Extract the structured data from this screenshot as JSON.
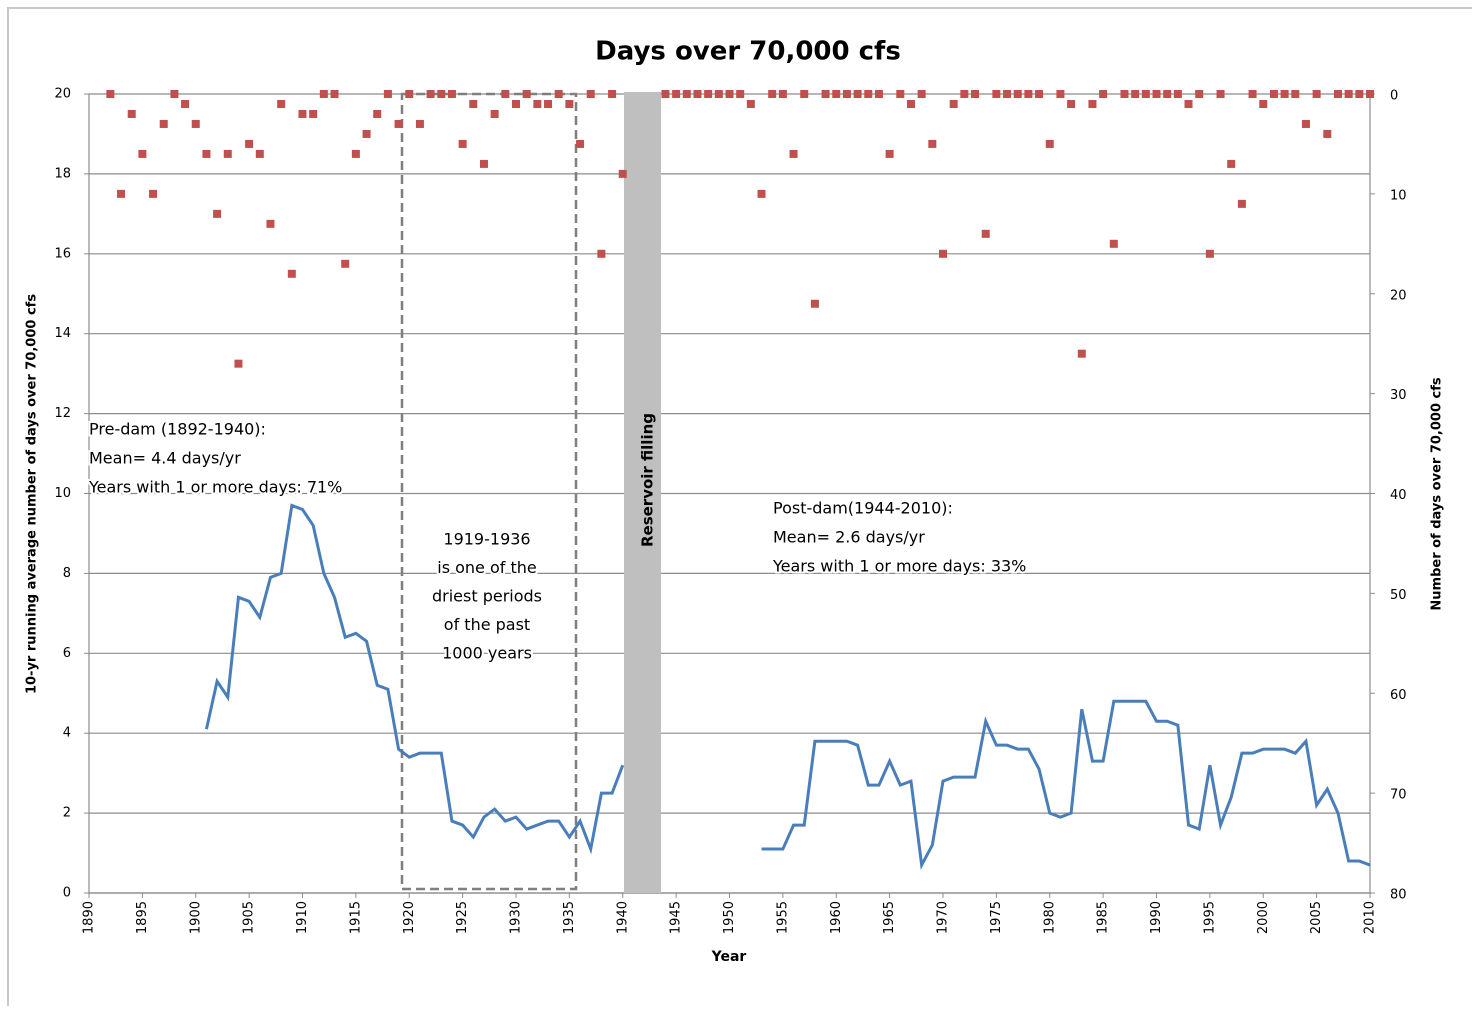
{
  "chart_data": {
    "type": "line",
    "title": "Days over 70,000 cfs",
    "x_label": "Year",
    "y_label": "10-yr running average number of days over 70,000 cfs",
    "y2_label": "Number of days over 70,000 cfs",
    "xlim": [
      1890,
      2010
    ],
    "xticks": [
      1890,
      1895,
      1900,
      1905,
      1910,
      1915,
      1920,
      1925,
      1930,
      1935,
      1940,
      1945,
      1950,
      1955,
      1960,
      1965,
      1970,
      1975,
      1980,
      1985,
      1990,
      1995,
      2000,
      2005,
      2010
    ],
    "ylim": [
      0,
      20
    ],
    "yticks": [
      0,
      2,
      4,
      6,
      8,
      10,
      12,
      14,
      16,
      18,
      20
    ],
    "y2lim": [
      80,
      0
    ],
    "y2ticks": [
      0,
      10,
      20,
      30,
      40,
      50,
      60,
      70,
      80
    ],
    "grid": true,
    "x": [
      1892,
      1893,
      1894,
      1895,
      1896,
      1897,
      1898,
      1899,
      1900,
      1901,
      1902,
      1903,
      1904,
      1905,
      1906,
      1907,
      1908,
      1909,
      1910,
      1911,
      1912,
      1913,
      1914,
      1915,
      1916,
      1917,
      1918,
      1919,
      1920,
      1921,
      1922,
      1923,
      1924,
      1925,
      1926,
      1927,
      1928,
      1929,
      1930,
      1931,
      1932,
      1933,
      1934,
      1935,
      1936,
      1937,
      1938,
      1939,
      1940,
      1941,
      1942,
      1943,
      1944,
      1945,
      1946,
      1947,
      1948,
      1949,
      1950,
      1951,
      1952,
      1953,
      1954,
      1955,
      1956,
      1957,
      1958,
      1959,
      1960,
      1961,
      1962,
      1963,
      1964,
      1965,
      1966,
      1967,
      1968,
      1969,
      1970,
      1971,
      1972,
      1973,
      1974,
      1975,
      1976,
      1977,
      1978,
      1979,
      1980,
      1981,
      1982,
      1983,
      1984,
      1985,
      1986,
      1987,
      1988,
      1989,
      1990,
      1991,
      1992,
      1993,
      1994,
      1995,
      1996,
      1997,
      1998,
      1999,
      2000,
      2001,
      2002,
      2003,
      2004,
      2005,
      2006,
      2007,
      2008,
      2009,
      2010
    ],
    "series": [
      {
        "type": "line",
        "color": "#4a7ebb",
        "axis": "y",
        "values": [
          null,
          null,
          null,
          null,
          null,
          null,
          null,
          null,
          null,
          4.1,
          5.3,
          4.9,
          7.4,
          7.3,
          6.9,
          7.9,
          8.0,
          9.7,
          9.6,
          9.2,
          8.0,
          7.4,
          6.4,
          6.5,
          6.3,
          5.2,
          5.1,
          3.6,
          3.4,
          3.5,
          3.5,
          3.5,
          1.8,
          1.7,
          1.4,
          1.9,
          2.1,
          1.8,
          1.9,
          1.6,
          1.7,
          1.8,
          1.8,
          1.4,
          1.8,
          1.1,
          2.5,
          2.5,
          3.2,
          null,
          null,
          null,
          null,
          null,
          null,
          null,
          null,
          null,
          null,
          null,
          null,
          1.1,
          1.1,
          1.1,
          1.7,
          1.7,
          3.8,
          3.8,
          3.8,
          3.8,
          3.7,
          2.7,
          2.7,
          3.3,
          2.7,
          2.8,
          0.7,
          1.2,
          2.8,
          2.9,
          2.9,
          2.9,
          4.3,
          3.7,
          3.7,
          3.6,
          3.6,
          3.1,
          2.0,
          1.9,
          2.0,
          4.6,
          3.3,
          3.3,
          4.8,
          4.8,
          4.8,
          4.8,
          4.3,
          4.3,
          4.2,
          1.7,
          1.6,
          3.2,
          1.7,
          2.4,
          3.5,
          3.5,
          3.6,
          3.6,
          3.6,
          3.5,
          3.8,
          2.2,
          2.6,
          2.0,
          0.8,
          0.8,
          0.7
        ]
      },
      {
        "type": "scatter",
        "color": "#c0504d",
        "axis": "y2",
        "values": [
          0,
          10,
          2,
          6,
          10,
          3,
          0,
          1,
          3,
          6,
          12,
          6,
          27,
          5,
          6,
          13,
          1,
          18,
          2,
          2,
          0,
          0,
          17,
          6,
          4,
          2,
          0,
          3,
          0,
          3,
          0,
          0,
          0,
          5,
          1,
          7,
          2,
          0,
          1,
          0,
          1,
          1,
          0,
          1,
          5,
          0,
          16,
          0,
          8,
          null,
          null,
          null,
          0,
          0,
          0,
          0,
          0,
          0,
          0,
          0,
          1,
          10,
          0,
          0,
          6,
          0,
          21,
          0,
          0,
          0,
          0,
          0,
          0,
          6,
          0,
          1,
          0,
          5,
          16,
          1,
          0,
          0,
          14,
          0,
          0,
          0,
          0,
          0,
          5,
          0,
          1,
          26,
          1,
          0,
          15,
          0,
          0,
          0,
          0,
          0,
          0,
          1,
          0,
          16,
          0,
          7,
          11,
          0,
          1,
          0,
          0,
          0,
          3,
          0,
          4,
          0,
          0,
          0,
          0
        ]
      }
    ],
    "annotations": [
      {
        "lines": [
          "Pre-dam (1892-1940):",
          "Mean= 4.4 days/yr",
          "Years with 1 or more days: 71%"
        ]
      },
      {
        "lines": [
          "1919-1936",
          "is one of the",
          "driest periods",
          "of the past",
          "1000 years"
        ]
      },
      {
        "lines": [
          "Reservoir  filling"
        ]
      },
      {
        "lines": [
          "Post-dam(1944-2010):",
          "Mean= 2.6 days/yr",
          "Years with 1 or more days: 33%"
        ]
      }
    ]
  }
}
